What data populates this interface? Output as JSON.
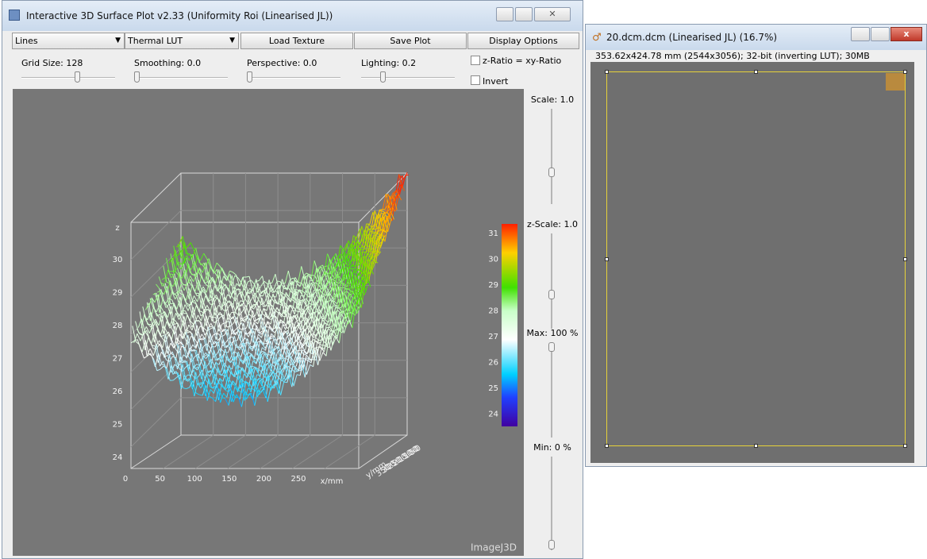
{
  "window1": {
    "title": "Interactive 3D Surface Plot v2.33  (Uniformity Roi (Linearised JL))",
    "controls": {
      "mode": "Lines",
      "lut": "Thermal LUT",
      "buttons": [
        "Load Texture",
        "Save Plot",
        "Display Options"
      ]
    },
    "sliders": [
      "Grid Size: 128",
      "Smoothing: 0.0",
      "Perspective: 0.0",
      "Lighting: 0.2"
    ],
    "checkboxes": [
      "z-Ratio = xy-Ratio",
      "Invert"
    ],
    "side_sliders": [
      "Scale: 1.0",
      "z-Scale: 1.0",
      "Max: 100 %",
      "Min: 0 %"
    ],
    "plot": {
      "z_label": "z",
      "z_ticks": [
        30,
        29,
        28,
        27,
        26,
        25,
        24
      ],
      "x_ticks": [
        0,
        50,
        100,
        150,
        200,
        250
      ],
      "x_label": "x/mm",
      "y_label": "y/mm",
      "y_ticks": [
        350,
        300,
        250,
        200,
        150,
        100,
        50,
        0
      ],
      "colorbar_ticks": [
        31,
        30,
        29,
        28,
        27,
        26,
        25,
        24
      ],
      "watermark": "ImageJ3D"
    }
  },
  "window2": {
    "title": "20.dcm.dcm (Linearised JL) (16.7%)",
    "info": "353.62x424.78 mm (2544x3056); 32-bit (inverting LUT); 30MB"
  }
}
